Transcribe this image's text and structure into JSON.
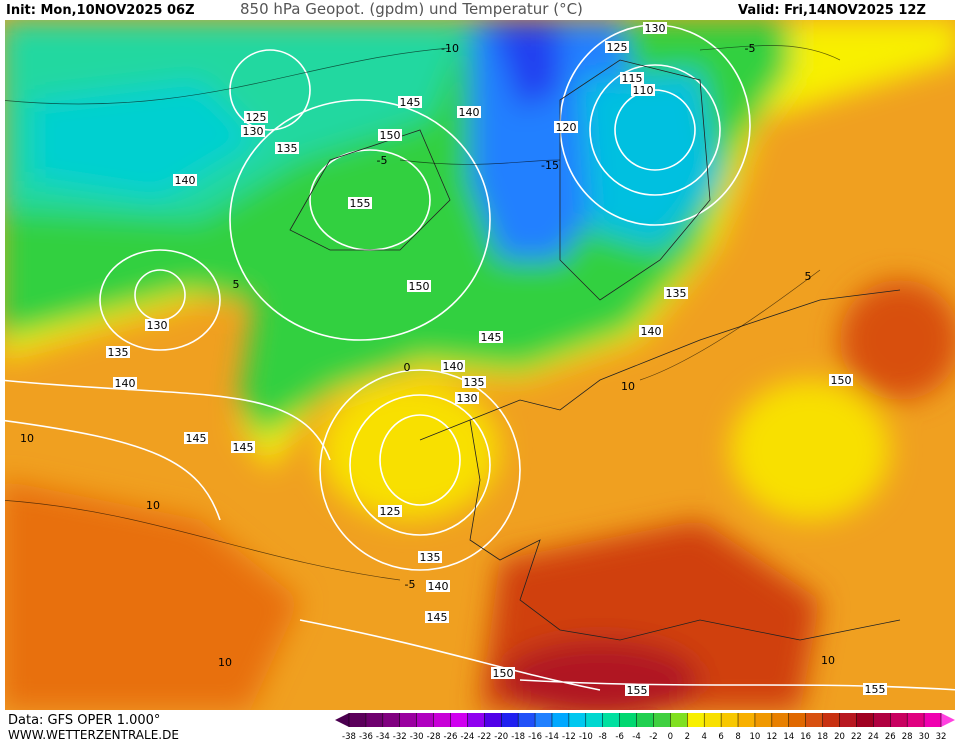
{
  "header": {
    "init": "Init: Mon,10NOV2025 06Z",
    "title": "850 hPa Geopot. (gpdm) und Temperatur (°C)",
    "valid": "Valid: Fri,14NOV2025 12Z"
  },
  "footer": {
    "data": "Data: GFS OPER 1.000°",
    "site": "WWW.WETTERZENTRALE.DE"
  },
  "map_labels": [
    130,
    125,
    115,
    110,
    120,
    145,
    140,
    150,
    125,
    130,
    135,
    140,
    155,
    150,
    135,
    140,
    145,
    140,
    135,
    130,
    130,
    135,
    140,
    145,
    145,
    125,
    135,
    140,
    145,
    150,
    155,
    155,
    150,
    -10,
    -15,
    -5,
    5,
    10,
    0,
    -5,
    10,
    10,
    10,
    -5,
    5,
    10
  ],
  "scale": {
    "ticks": [
      -38,
      -36,
      -34,
      -32,
      -30,
      -28,
      -26,
      -24,
      -22,
      -20,
      -18,
      -16,
      -14,
      -12,
      -10,
      -8,
      -6,
      -4,
      -2,
      0,
      2,
      4,
      6,
      8,
      10,
      12,
      14,
      16,
      18,
      20,
      22,
      24,
      26,
      28,
      30,
      32
    ],
    "colors": [
      "#4b0050",
      "#5c005c",
      "#6e006e",
      "#800080",
      "#9a00a0",
      "#b000c0",
      "#c800d8",
      "#d000f0",
      "#9000f0",
      "#5000e8",
      "#2020f0",
      "#2050f8",
      "#2080ff",
      "#00a8ff",
      "#00c8f0",
      "#00d8d0",
      "#00e0a0",
      "#00d870",
      "#20d050",
      "#40d040",
      "#80e020",
      "#f8f000",
      "#f8e000",
      "#f8c800",
      "#f8b000",
      "#f09800",
      "#e88000",
      "#e06800",
      "#d85010",
      "#c83010",
      "#b81820",
      "#a00020",
      "#b00040",
      "#c80060",
      "#e00080",
      "#f000b0",
      "#ff40e0"
    ]
  }
}
